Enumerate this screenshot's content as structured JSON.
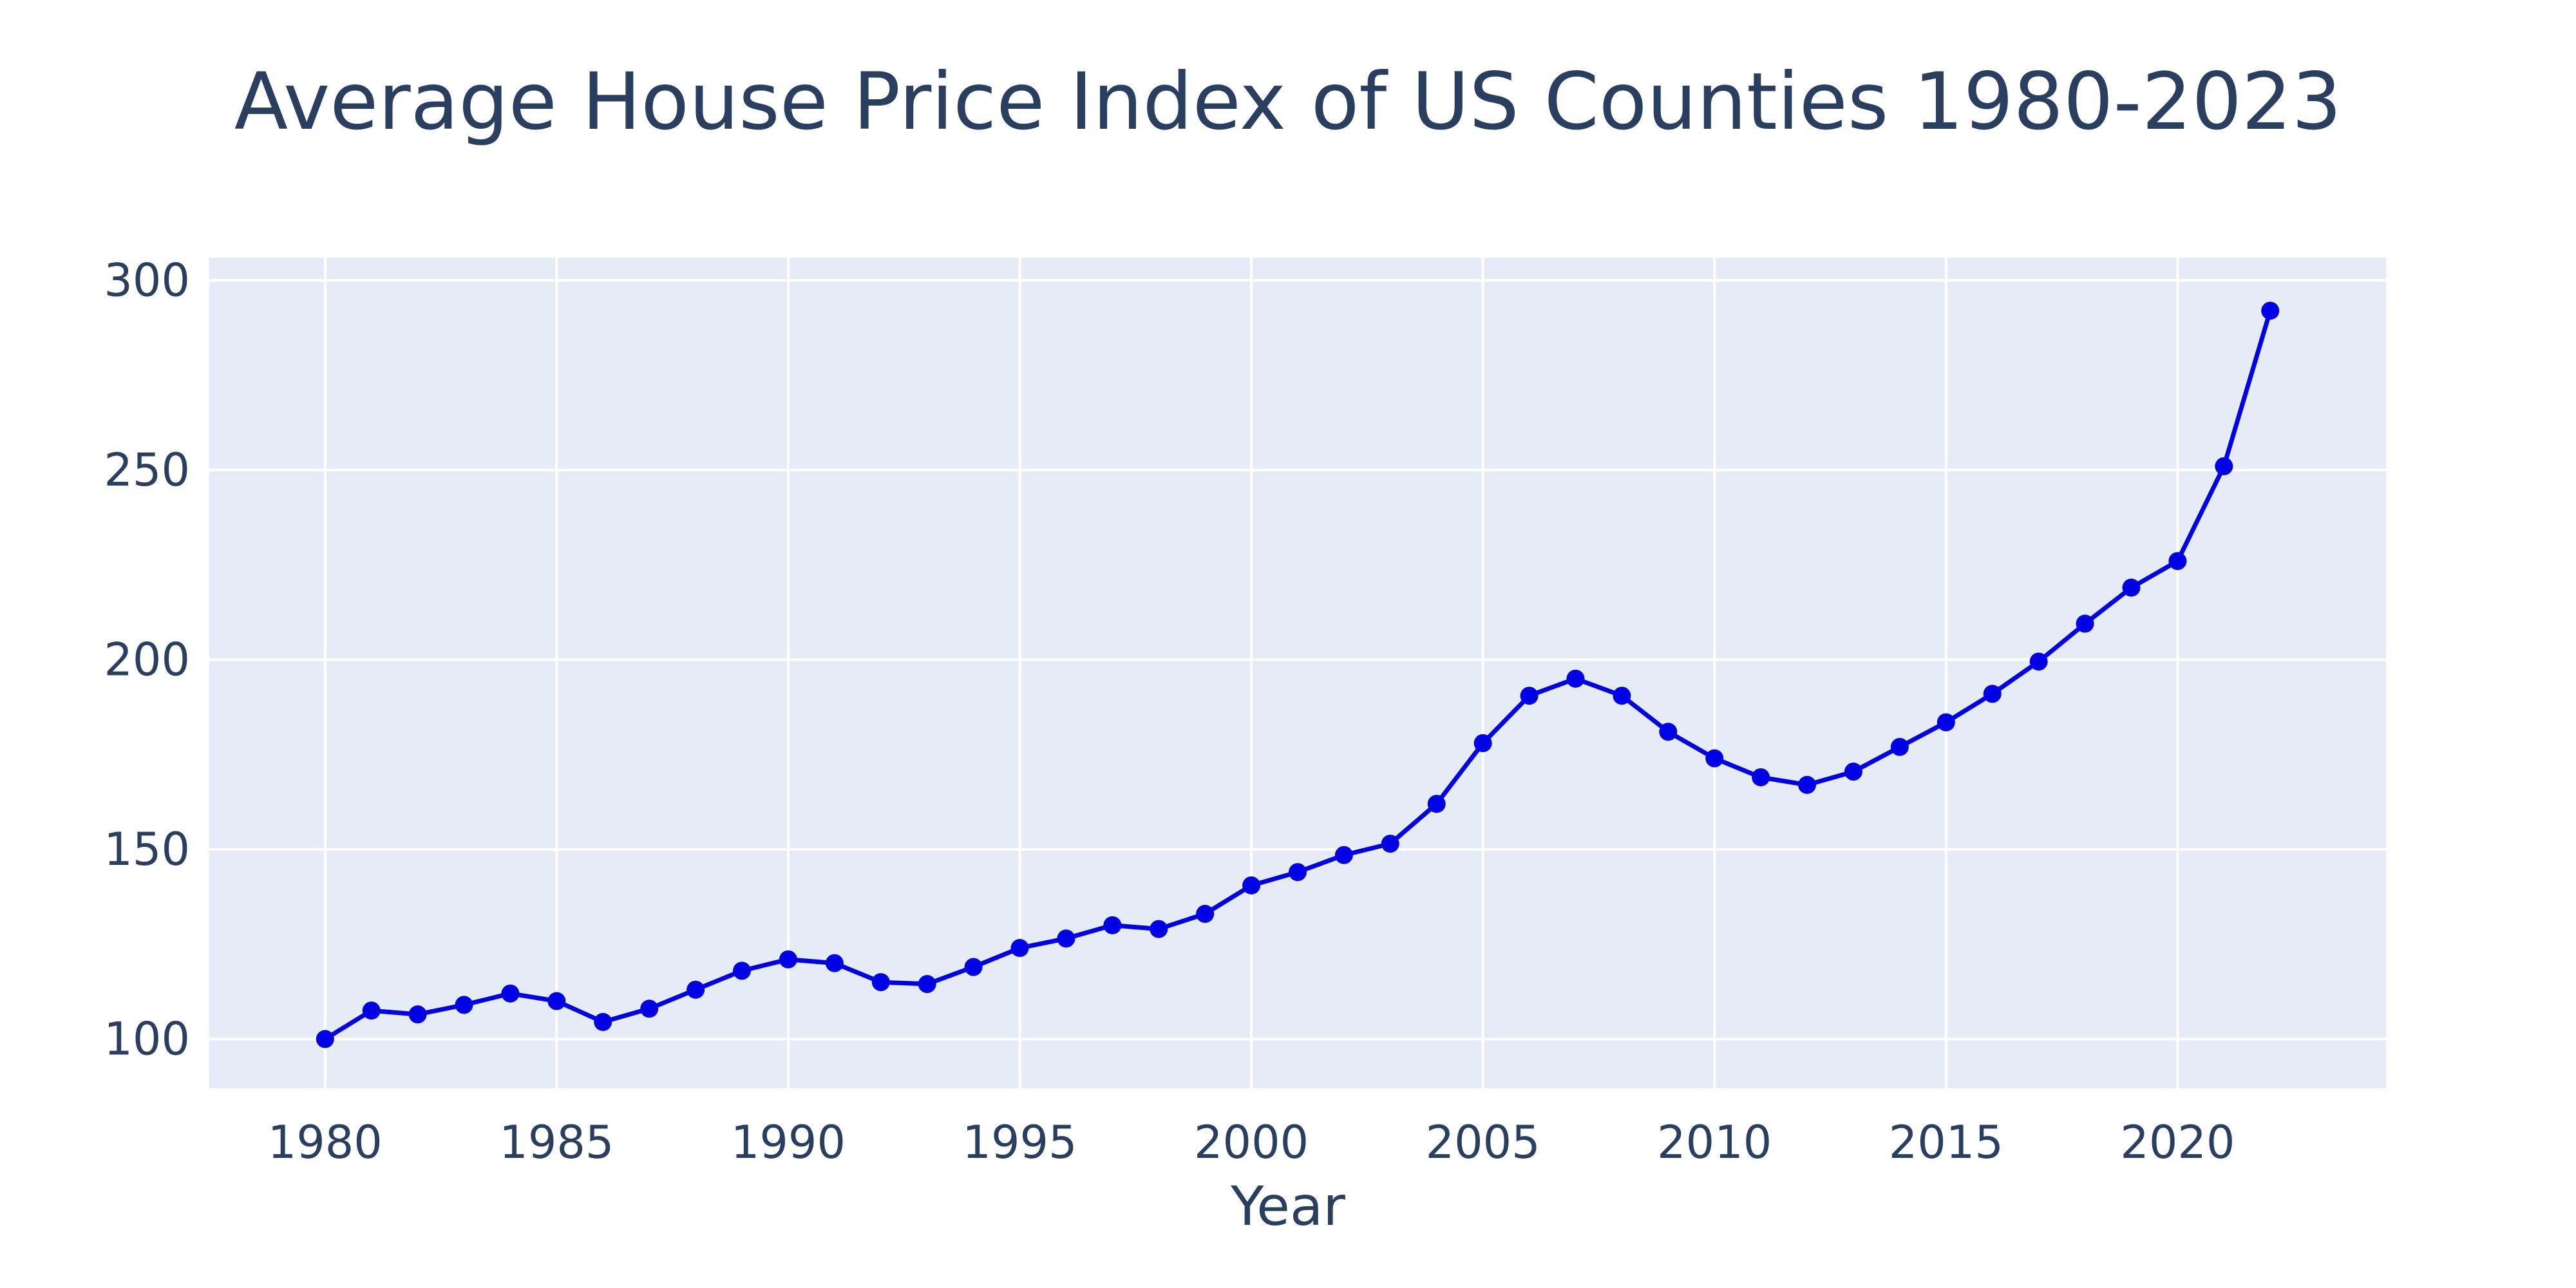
{
  "chart_data": {
    "type": "line",
    "title": "Average House Price Index of US Counties 1980-2023",
    "xlabel": "Year",
    "ylabel": "",
    "xlim": [
      1977.5,
      2024.5
    ],
    "ylim": [
      87,
      306
    ],
    "x_ticks": [
      1980,
      1985,
      1990,
      1995,
      2000,
      2005,
      2010,
      2015,
      2020
    ],
    "y_ticks": [
      100,
      150,
      200,
      250,
      300
    ],
    "grid": true,
    "legend": "none",
    "colors": {
      "line": "#0000e6",
      "plot_background": "#e5ecf6",
      "grid": "#ffffff",
      "text": "#2a3f5f"
    },
    "series": [
      {
        "x": [
          1980,
          1981,
          1982,
          1983,
          1984,
          1985,
          1986,
          1987,
          1988,
          1989,
          1990,
          1991,
          1992,
          1993,
          1994,
          1995,
          1996,
          1997,
          1998,
          1999,
          2000,
          2001,
          2002,
          2003,
          2004,
          2005,
          2006,
          2007,
          2008,
          2009,
          2010,
          2011,
          2012,
          2013,
          2014,
          2015,
          2016,
          2017,
          2018,
          2019,
          2020,
          2021,
          2022
        ],
        "values": [
          100,
          107.5,
          106.5,
          109,
          112,
          110,
          104.5,
          108,
          113,
          118,
          121,
          120,
          115,
          114.5,
          119,
          124,
          126.5,
          130,
          129,
          133,
          140.5,
          144,
          148.5,
          151.5,
          162,
          178,
          190.5,
          195,
          190.5,
          181,
          174,
          169,
          167,
          170.5,
          177,
          183.5,
          191,
          199.5,
          209.5,
          219,
          226,
          251,
          292
        ]
      }
    ]
  }
}
